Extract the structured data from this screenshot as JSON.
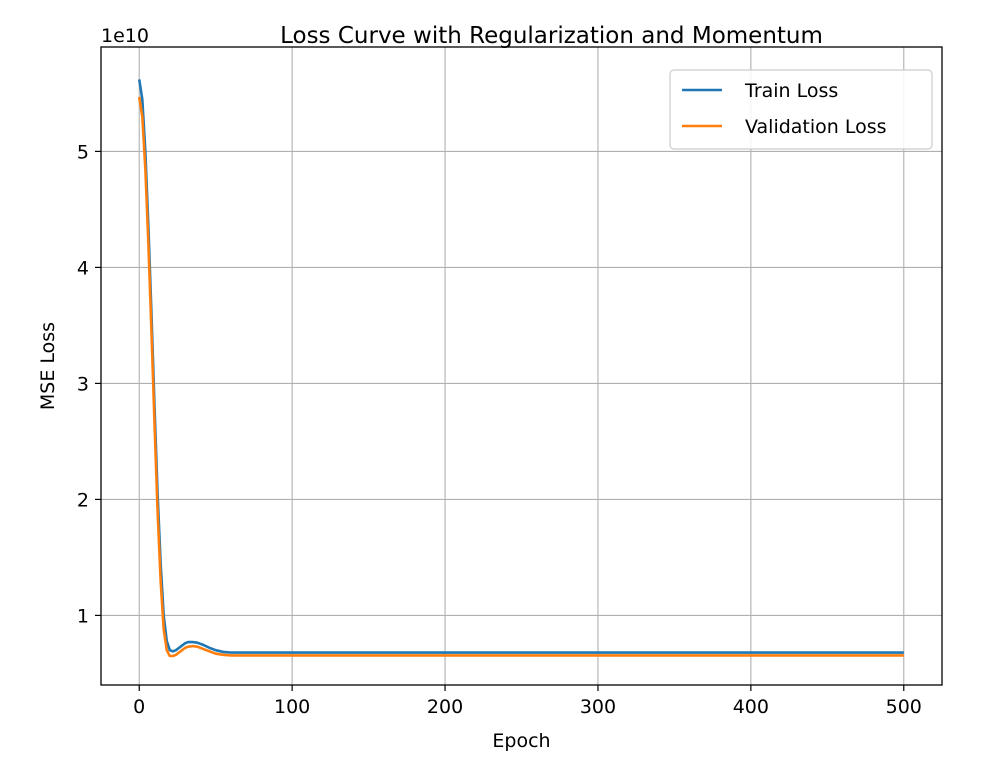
{
  "chart_data": {
    "type": "line",
    "title": "Loss Curve with Regularization and Momentum",
    "xlabel": "Epoch",
    "ylabel": "MSE Loss",
    "y_offset_label": "1e10",
    "y_scale": 10000000000,
    "xlim": [
      -25,
      525
    ],
    "ylim": [
      0.4,
      5.9
    ],
    "x_ticks": [
      0,
      100,
      200,
      300,
      400,
      500
    ],
    "x_tick_labels": [
      "0",
      "100",
      "200",
      "300",
      "400",
      "500"
    ],
    "y_ticks": [
      1,
      2,
      3,
      4,
      5
    ],
    "y_tick_labels": [
      "1",
      "2",
      "3",
      "4",
      "5"
    ],
    "grid": true,
    "legend_position": "upper-right",
    "colors": {
      "train": "#1f77b4",
      "validation": "#ff7f0e",
      "grid": "#b0b0b0",
      "axes": "#000000"
    },
    "series": [
      {
        "name": "Train Loss",
        "color": "#1f77b4",
        "x": [
          0,
          2,
          4,
          6,
          8,
          10,
          12,
          14,
          16,
          18,
          20,
          22,
          24,
          26,
          28,
          30,
          32,
          35,
          38,
          42,
          46,
          50,
          55,
          60,
          65,
          70,
          80,
          100,
          150,
          200,
          300,
          400,
          500
        ],
        "y": [
          5.62,
          5.45,
          5.0,
          4.35,
          3.6,
          2.8,
          2.05,
          1.45,
          1.0,
          0.78,
          0.7,
          0.69,
          0.7,
          0.72,
          0.74,
          0.76,
          0.77,
          0.77,
          0.765,
          0.745,
          0.72,
          0.7,
          0.685,
          0.68,
          0.68,
          0.68,
          0.68,
          0.68,
          0.68,
          0.68,
          0.68,
          0.68,
          0.68
        ]
      },
      {
        "name": "Validation Loss",
        "color": "#ff7f0e",
        "x": [
          0,
          2,
          4,
          6,
          8,
          10,
          12,
          14,
          16,
          18,
          20,
          22,
          24,
          26,
          28,
          30,
          32,
          35,
          38,
          42,
          46,
          50,
          55,
          60,
          65,
          70,
          80,
          100,
          150,
          200,
          300,
          400,
          500
        ],
        "y": [
          5.47,
          5.3,
          4.85,
          4.2,
          3.45,
          2.65,
          1.9,
          1.3,
          0.88,
          0.7,
          0.65,
          0.65,
          0.66,
          0.68,
          0.7,
          0.72,
          0.73,
          0.735,
          0.73,
          0.71,
          0.69,
          0.67,
          0.66,
          0.655,
          0.655,
          0.655,
          0.655,
          0.655,
          0.655,
          0.655,
          0.655,
          0.655,
          0.655
        ]
      }
    ]
  }
}
